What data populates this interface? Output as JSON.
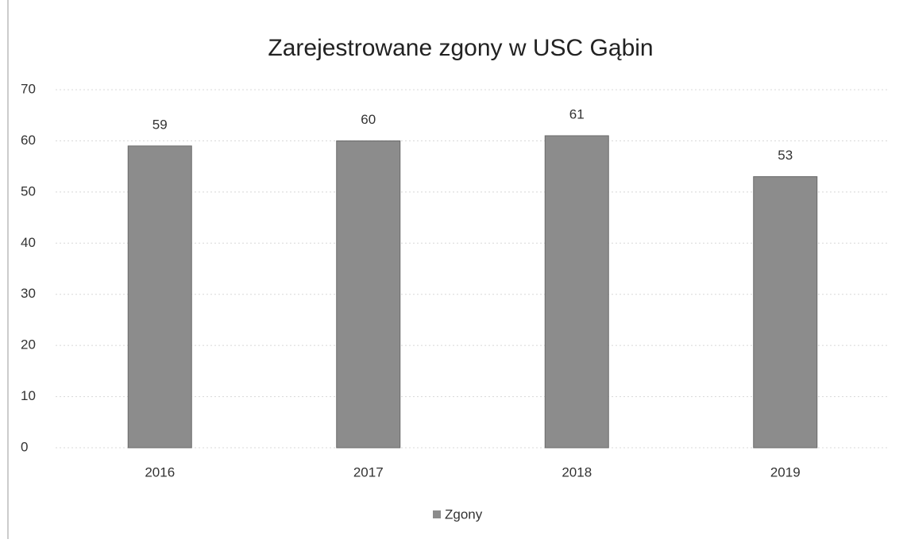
{
  "chart_data": {
    "type": "bar",
    "title": "Zarejestrowane zgony w USC Gąbin",
    "categories": [
      "2016",
      "2017",
      "2018",
      "2019"
    ],
    "series": [
      {
        "name": "Zgony",
        "color": "#8c8c8c",
        "values": [
          59,
          60,
          61,
          53
        ]
      }
    ],
    "ylim": [
      0,
      70
    ],
    "yticks": [
      0,
      10,
      20,
      30,
      40,
      50,
      60,
      70
    ],
    "grid": true,
    "legend": "bottom"
  }
}
